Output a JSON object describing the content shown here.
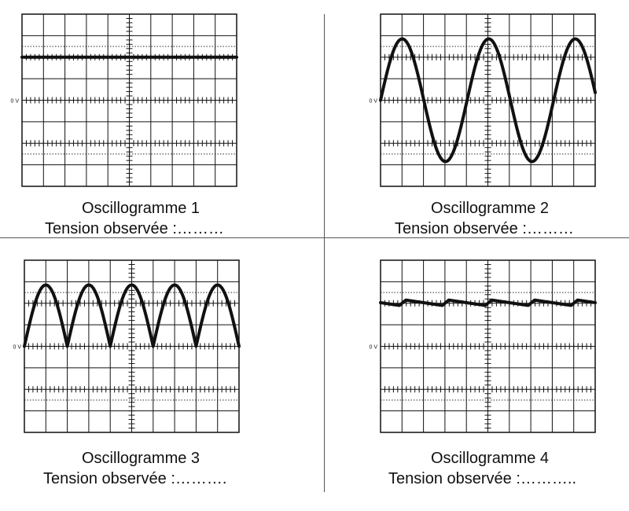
{
  "zero_label": "0 V",
  "panels": [
    {
      "title": "Oscillogramme 1",
      "subtitle": "Tension observée :………",
      "waveform": "dc"
    },
    {
      "title": "Oscillogramme 2",
      "subtitle": "Tension observée :………",
      "waveform": "sine"
    },
    {
      "title": "Oscillogramme 3",
      "subtitle": "Tension observée :……….",
      "waveform": "full-wave-rectified"
    },
    {
      "title": "Oscillogramme 4",
      "subtitle": "Tension observée :………..",
      "waveform": "filtered-ripple"
    }
  ],
  "grid": {
    "divisions_x": 10,
    "divisions_y": 8
  },
  "colors": {
    "trace": "#111111",
    "grid": "#111111",
    "background": "#ffffff"
  }
}
